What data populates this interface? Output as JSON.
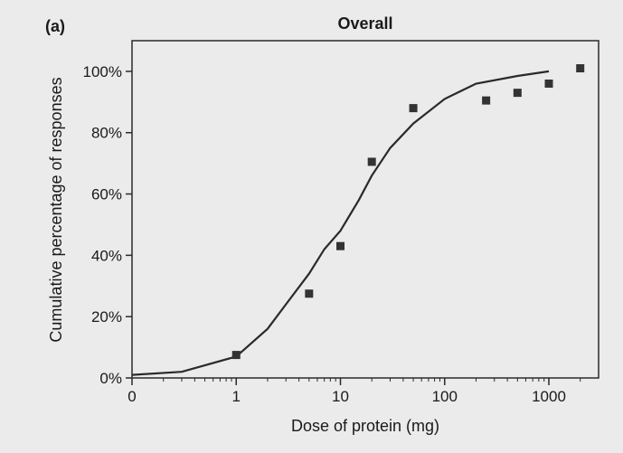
{
  "panel_label": "(a)",
  "chart_data": {
    "type": "scatter",
    "title": "Overall",
    "xlabel": "Dose of protein (mg)",
    "ylabel": "Cumulative percentage of responses",
    "x_scale": "log",
    "x_ticks": [
      "0",
      "1",
      "10",
      "100",
      "1000"
    ],
    "y_ticks": [
      "0%",
      "20%",
      "40%",
      "60%",
      "80%",
      "100%"
    ],
    "xlim": [
      0.1,
      3000
    ],
    "ylim": [
      0,
      110
    ],
    "grid": false,
    "series": [
      {
        "marker": "square",
        "x": [
          1,
          5,
          10,
          20,
          50,
          250,
          500,
          1000,
          2000
        ],
        "y": [
          7.5,
          27.5,
          43,
          70.5,
          88,
          90.5,
          93,
          96,
          101
        ]
      }
    ],
    "fit_curve": {
      "kind": "sigmoid",
      "x": [
        0.1,
        0.3,
        1,
        2,
        3,
        5,
        7,
        10,
        15,
        20,
        30,
        50,
        100,
        200,
        500,
        1000
      ],
      "y": [
        1,
        2,
        7,
        16,
        24,
        34,
        42,
        48,
        58,
        66,
        75,
        83,
        91,
        96,
        98.5,
        100
      ]
    },
    "colors": {
      "background": "#ebebeb",
      "ink": "#2a2a2a",
      "marker": "#333333"
    }
  }
}
